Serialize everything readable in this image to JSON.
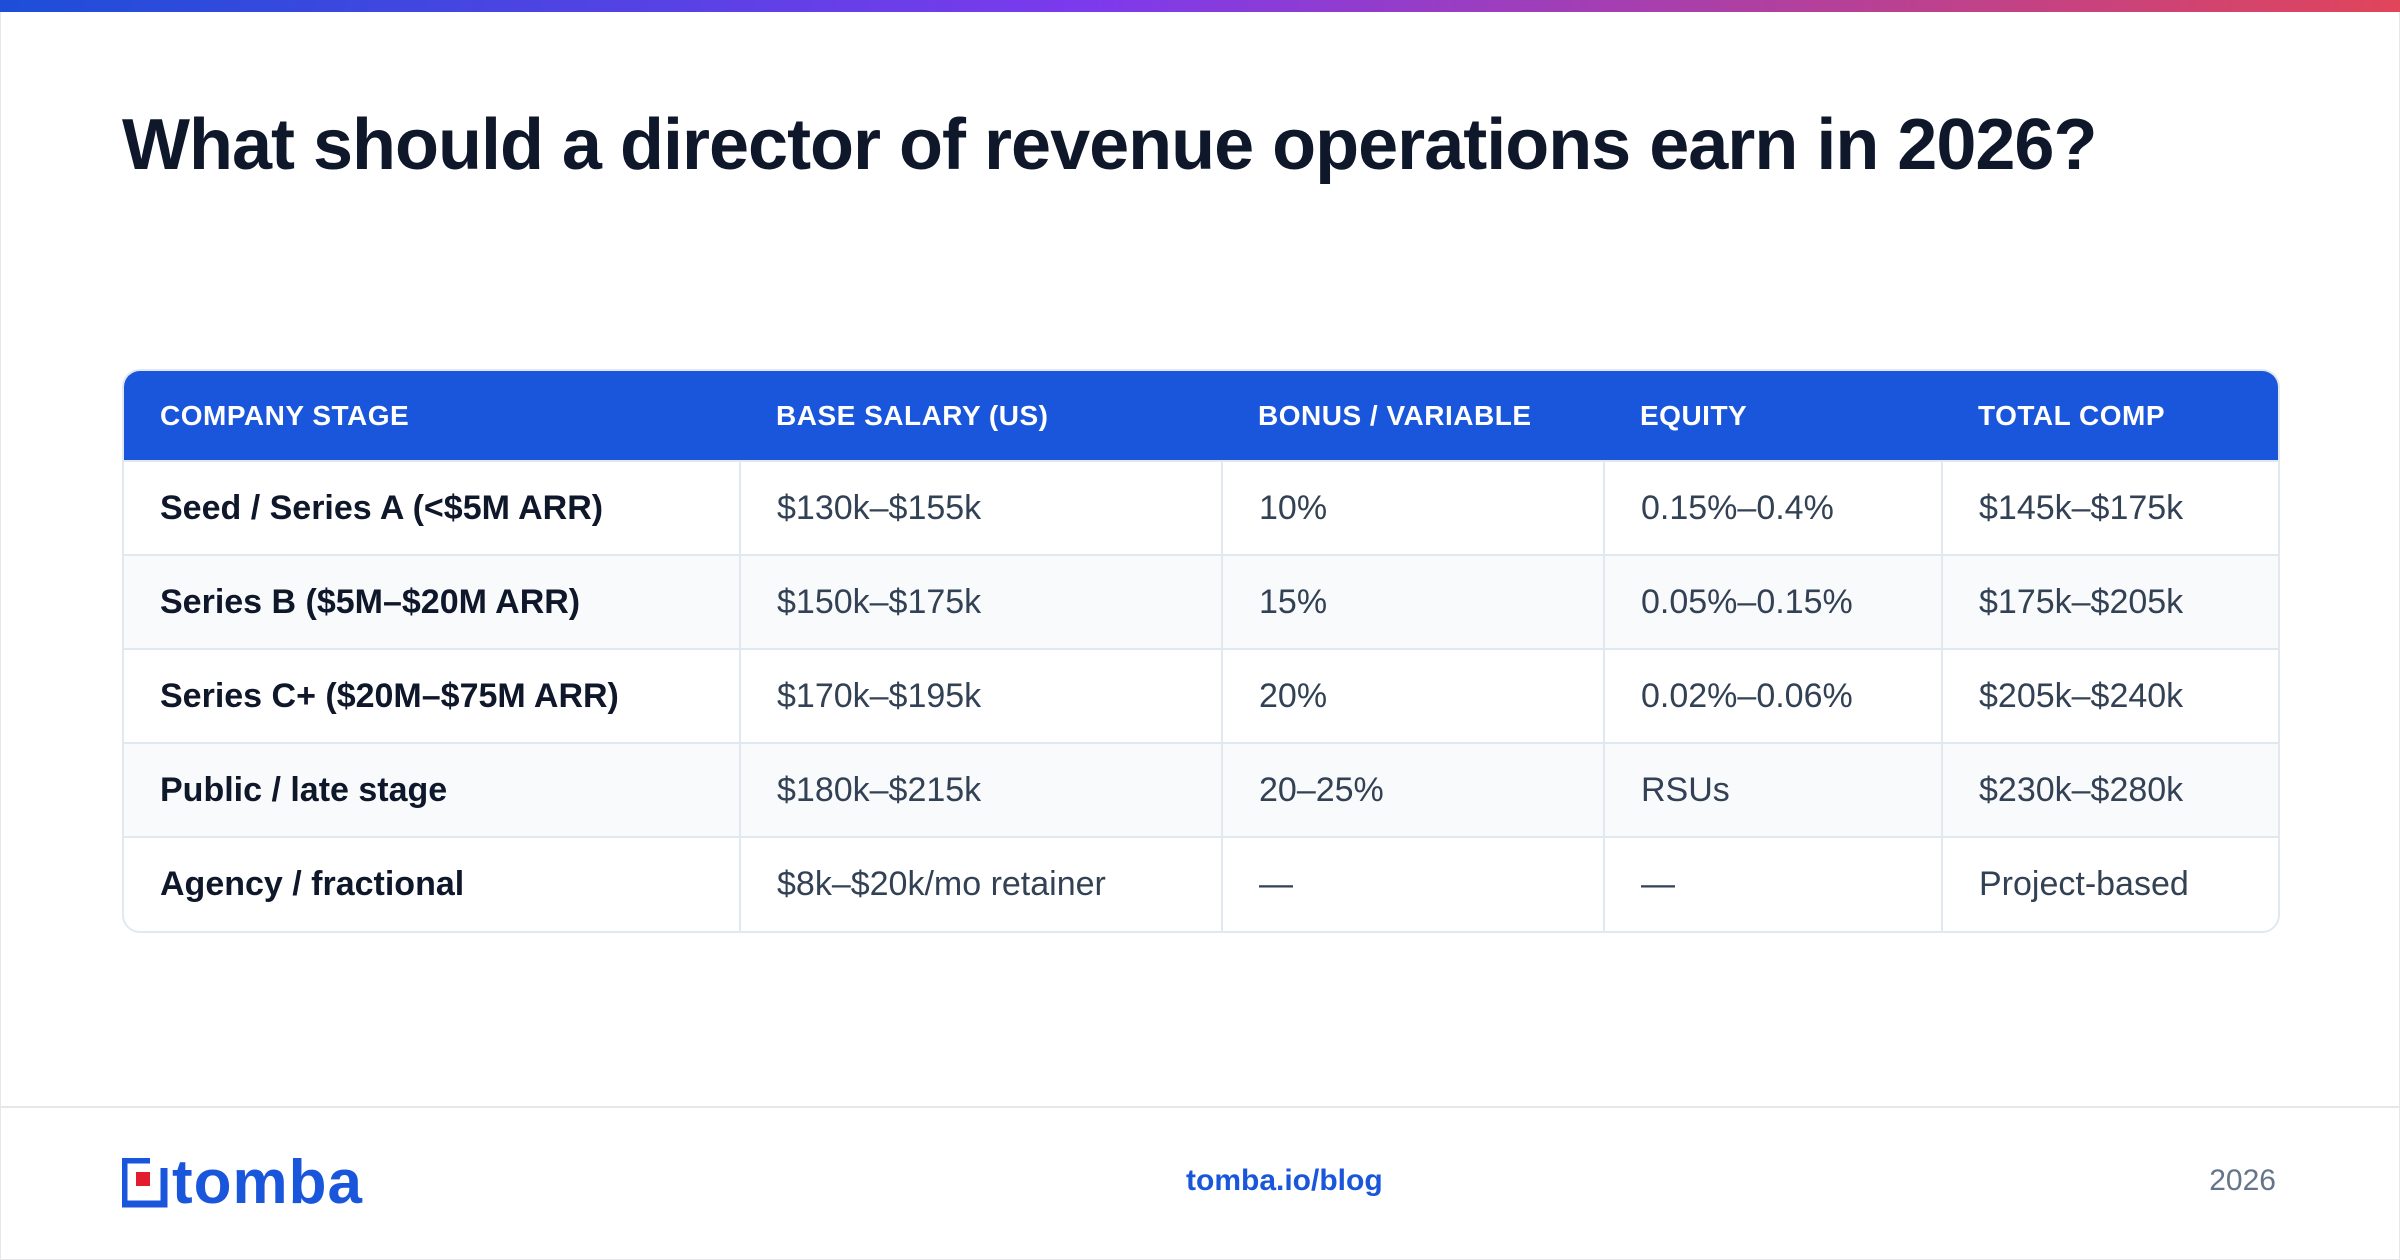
{
  "title": "What should a director of revenue operations earn in 2026?",
  "colors": {
    "accent": "#1a56db",
    "gradient_start": "#1d4ed8",
    "gradient_end": "#e0455a"
  },
  "table": {
    "headers": [
      "COMPANY STAGE",
      "BASE SALARY (US)",
      "BONUS / VARIABLE",
      "EQUITY",
      "TOTAL COMP"
    ],
    "rows": [
      [
        "Seed / Series A (<$5M ARR)",
        "$130k–$155k",
        "10%",
        "0.15%–0.4%",
        "$145k–$175k"
      ],
      [
        "Series B ($5M–$20M ARR)",
        "$150k–$175k",
        "15%",
        "0.05%–0.15%",
        "$175k–$205k"
      ],
      [
        "Series C+ ($20M–$75M ARR)",
        "$170k–$195k",
        "20%",
        "0.02%–0.06%",
        "$205k–$240k"
      ],
      [
        "Public / late stage",
        "$180k–$215k",
        "20–25%",
        "RSUs",
        "$230k–$280k"
      ],
      [
        "Agency / fractional",
        "$8k–$20k/mo retainer",
        "—",
        "—",
        "Project-based"
      ]
    ]
  },
  "footer": {
    "logo_text": "tomba",
    "logo_icon": "tomba-logo-icon",
    "link": "tomba.io/blog",
    "year": "2026"
  }
}
